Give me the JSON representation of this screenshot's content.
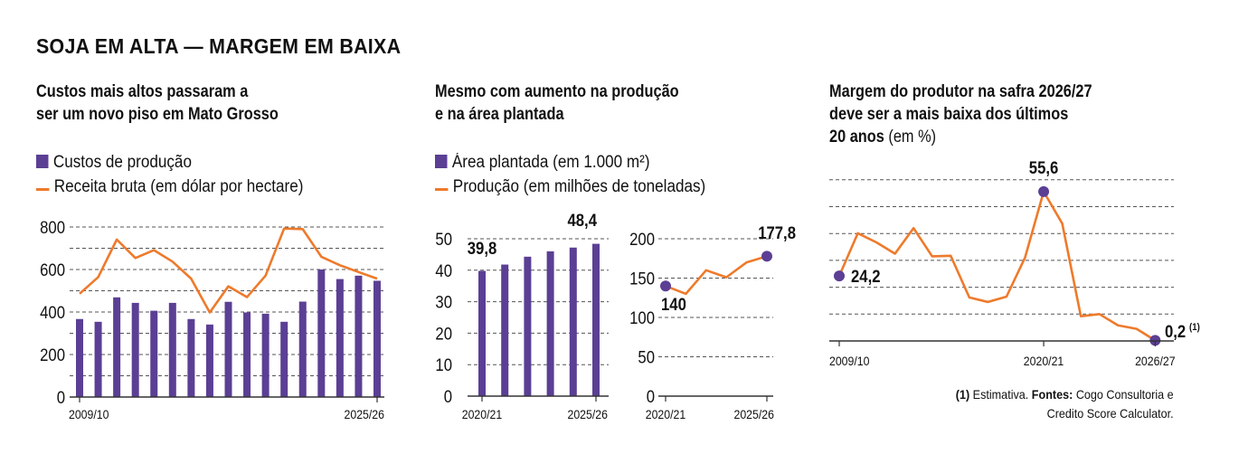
{
  "title": "SOJA EM ALTA — MARGEM EM BAIXA",
  "colors": {
    "bar": "#5b3f94",
    "line": "#ee7a2b",
    "grid": "#555555",
    "dot": "#5b3f94"
  },
  "panels": [
    {
      "subtitle": [
        "Custos mais altos passaram a",
        "ser um novo piso em Mato Grosso"
      ],
      "legend": [
        "Custos de produção",
        "Receita bruta (em dólar por hectare)"
      ]
    },
    {
      "subtitle": [
        "Mesmo com aumento na produção",
        "e na área plantada"
      ],
      "legend": [
        "Área plantada (em 1.000 m²)",
        "Produção (em milhões de toneladas)"
      ]
    },
    {
      "subtitle": [
        "Margem do produtor na safra 2026/27",
        "deve ser a mais baixa dos últimos",
        "20 anos"
      ],
      "subtitle_suffix": "(em %)"
    }
  ],
  "footnote": {
    "mark": "(1)",
    "text": "Estimativa.",
    "sources_label": "Fontes:",
    "sources": "Cogo Consultoria e",
    "sources2": "Credito Score Calculator."
  },
  "chart_data": [
    {
      "type": "bar+line",
      "title": "Custos mais altos passaram a ser um novo piso em Mato Grosso",
      "x_labels_shown": [
        "2009/10",
        "2025/26"
      ],
      "categories": [
        "2009/10",
        "2010/11",
        "2011/12",
        "2012/13",
        "2013/14",
        "2014/15",
        "2015/16",
        "2016/17",
        "2017/18",
        "2018/19",
        "2019/20",
        "2020/21",
        "2021/22",
        "2022/23",
        "2023/24",
        "2024/25",
        "2025/26"
      ],
      "series": [
        {
          "name": "Custos de produção",
          "kind": "bar",
          "values": [
            367,
            354,
            469,
            443,
            406,
            443,
            367,
            341,
            448,
            398,
            392,
            354,
            449,
            600,
            555,
            571,
            547
          ]
        },
        {
          "name": "Receita bruta (em dólar por hectare)",
          "kind": "line",
          "values": [
            486,
            564,
            741,
            654,
            691,
            637,
            557,
            398,
            521,
            470,
            571,
            793,
            790,
            660,
            620,
            588,
            557
          ]
        }
      ],
      "ylim": [
        0,
        800
      ],
      "yticks": [
        "0",
        "200",
        "400",
        "600",
        "800"
      ],
      "grid_step": 100,
      "grid": true
    },
    {
      "type": "bar",
      "title": "Área plantada",
      "categories": [
        "2020/21",
        "2021/22",
        "2022/23",
        "2023/24",
        "2024/25",
        "2025/26"
      ],
      "x_labels_shown": [
        "2020/21",
        "2025/26"
      ],
      "values": [
        39.8,
        41.8,
        44.3,
        46.0,
        47.2,
        48.4
      ],
      "annotations": [
        "39,8",
        "48,4"
      ],
      "ylim": [
        0,
        50
      ],
      "yticks": [
        "0",
        "10",
        "20",
        "30",
        "40",
        "50"
      ],
      "grid": true
    },
    {
      "type": "line",
      "title": "Produção",
      "categories": [
        "2020/21",
        "2021/22",
        "2022/23",
        "2023/24",
        "2024/25",
        "2025/26"
      ],
      "x_labels_shown": [
        "2020/21",
        "2025/26"
      ],
      "values": [
        140,
        130,
        160,
        151,
        170,
        177.8
      ],
      "annotations": [
        "140",
        "177,8"
      ],
      "ylim": [
        0,
        200
      ],
      "yticks": [
        "0",
        "50",
        "100",
        "150",
        "200"
      ],
      "grid": true
    },
    {
      "type": "line",
      "title": "Margem do produtor (em %)",
      "categories": [
        "2009/10",
        "2010/11",
        "2011/12",
        "2012/13",
        "2013/14",
        "2014/15",
        "2015/16",
        "2016/17",
        "2017/18",
        "2018/19",
        "2019/20",
        "2020/21",
        "2021/22",
        "2022/23",
        "2023/24",
        "2024/25",
        "2025/26",
        "2026/27"
      ],
      "x_labels_shown": [
        "2009/10",
        "2020/21",
        "2026/27"
      ],
      "values": [
        24.2,
        40.1,
        36.7,
        32.5,
        42.0,
        31.5,
        31.7,
        16.2,
        14.5,
        16.5,
        31.1,
        55.6,
        43.7,
        9.2,
        10.0,
        5.8,
        4.5,
        0.2
      ],
      "annotations": [
        "24,2",
        "55,6",
        "0,2",
        "(1)"
      ],
      "ylim": [
        0,
        60
      ],
      "grid_step": 10,
      "grid": true
    }
  ]
}
